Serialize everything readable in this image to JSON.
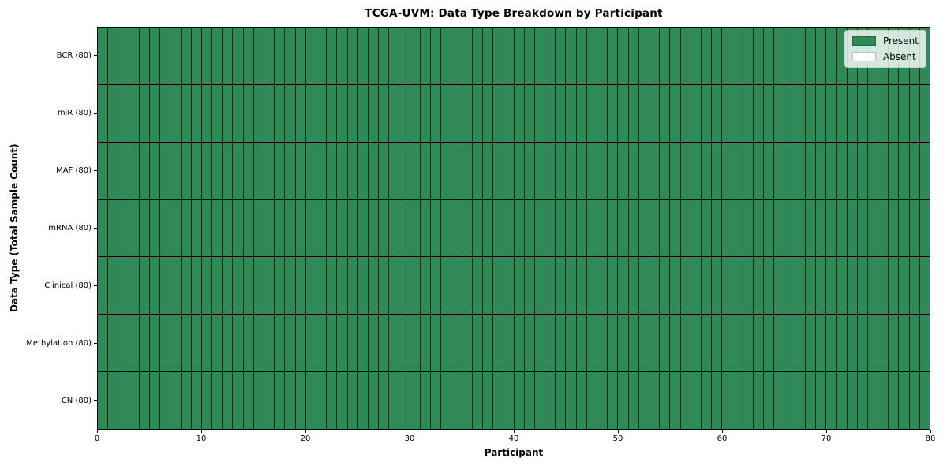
{
  "chart_data": {
    "type": "heatmap",
    "title": "TCGA-UVM: Data Type Breakdown by Participant",
    "xlabel": "Participant",
    "ylabel": "Data Type (Total Sample Count)",
    "xlim": [
      0,
      80
    ],
    "x_ticks": [
      0,
      10,
      20,
      30,
      40,
      50,
      60,
      70,
      80
    ],
    "n_participants": 80,
    "rows": [
      {
        "name": "BCR",
        "label": "BCR (80)",
        "total_samples": 80,
        "present_count": 80,
        "absent_count": 0
      },
      {
        "name": "miR",
        "label": "miR (80)",
        "total_samples": 80,
        "present_count": 80,
        "absent_count": 0
      },
      {
        "name": "MAF",
        "label": "MAF (80)",
        "total_samples": 80,
        "present_count": 80,
        "absent_count": 0
      },
      {
        "name": "mRNA",
        "label": "mRNA (80)",
        "total_samples": 80,
        "present_count": 80,
        "absent_count": 0
      },
      {
        "name": "Clinical",
        "label": "Clinical (80)",
        "total_samples": 80,
        "present_count": 80,
        "absent_count": 0
      },
      {
        "name": "Methylation",
        "label": "Methylation (80)",
        "total_samples": 80,
        "present_count": 80,
        "absent_count": 0
      },
      {
        "name": "CN",
        "label": "CN (80)",
        "total_samples": 80,
        "present_count": 80,
        "absent_count": 0
      }
    ],
    "legend": {
      "position": "upper right",
      "entries": [
        {
          "label": "Present",
          "color": "#2e8b57"
        },
        {
          "label": "Absent",
          "color": "#ffffff"
        }
      ]
    },
    "colors": {
      "present": "#2e8b57",
      "absent": "#ffffff",
      "cell_border": "#000000",
      "background": "#ffffff"
    },
    "grid": "cell-borders",
    "all_cells_status": "Present"
  }
}
